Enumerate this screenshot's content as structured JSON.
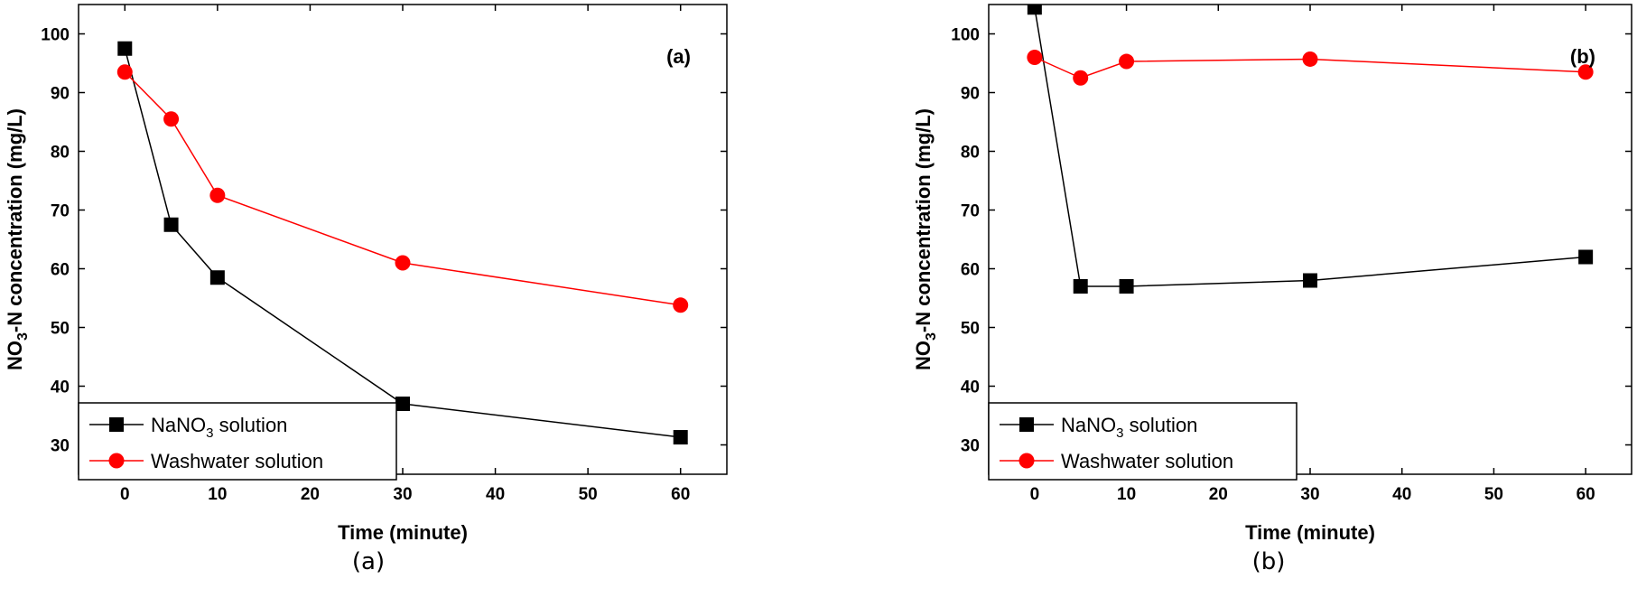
{
  "chart_data": [
    {
      "type": "line",
      "panel_label": "(a)",
      "caption": "(a)",
      "xlabel": "Time (minute)",
      "ylabel": {
        "main": "NO",
        "sub": "3",
        "rest": "-N concentration (mg/L)"
      },
      "xlim": [
        -5,
        65
      ],
      "ylim": [
        25,
        105
      ],
      "xticks": [
        0,
        10,
        20,
        30,
        40,
        50,
        60
      ],
      "yticks": [
        30,
        40,
        50,
        60,
        70,
        80,
        90,
        100
      ],
      "grid": false,
      "legend_position": "bottom-left",
      "series": [
        {
          "name": {
            "main": "NaNO",
            "sub": "3",
            "rest": " solution"
          },
          "color": "#000000",
          "marker": "square",
          "x": [
            0,
            5,
            10,
            30,
            60
          ],
          "y": [
            97.5,
            67.5,
            58.5,
            37,
            31.3
          ]
        },
        {
          "name": {
            "main": "Washwater solution",
            "sub": "",
            "rest": ""
          },
          "color": "#ff0000",
          "marker": "circle",
          "x": [
            0,
            5,
            10,
            30,
            60
          ],
          "y": [
            93.5,
            85.5,
            72.5,
            61,
            53.8
          ]
        }
      ]
    },
    {
      "type": "line",
      "panel_label": "(b)",
      "caption": "(b)",
      "xlabel": "Time (minute)",
      "ylabel": {
        "main": "NO",
        "sub": "3",
        "rest": "-N concentration (mg/L)"
      },
      "xlim": [
        -5,
        65
      ],
      "ylim": [
        25,
        105
      ],
      "xticks": [
        0,
        10,
        20,
        30,
        40,
        50,
        60
      ],
      "yticks": [
        30,
        40,
        50,
        60,
        70,
        80,
        90,
        100
      ],
      "grid": false,
      "legend_position": "bottom-left",
      "series": [
        {
          "name": {
            "main": "NaNO",
            "sub": "3",
            "rest": " solution"
          },
          "color": "#000000",
          "marker": "square",
          "x": [
            0,
            5,
            10,
            30,
            60
          ],
          "y": [
            104.5,
            57,
            57,
            58,
            62
          ]
        },
        {
          "name": {
            "main": "Washwater solution",
            "sub": "",
            "rest": ""
          },
          "color": "#ff0000",
          "marker": "circle",
          "x": [
            0,
            5,
            10,
            30,
            60
          ],
          "y": [
            96,
            92.5,
            95.3,
            95.7,
            93.5
          ]
        }
      ]
    }
  ]
}
